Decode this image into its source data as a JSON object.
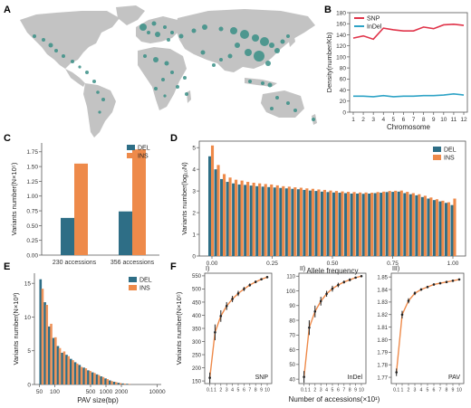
{
  "colors": {
    "teal": "#2e6e86",
    "orange": "#ee8a4a",
    "snp_red": "#e0344a",
    "indel_blue": "#2ea3c6",
    "map_land": "#c3c3c3",
    "map_dot": "#3a8f86",
    "err": "#222222"
  },
  "panel_labels": [
    "A",
    "B",
    "C",
    "D",
    "E",
    "F"
  ],
  "chart_data": [
    {
      "panel": "A",
      "type": "map",
      "title": "",
      "description_points": "sampling locations shown as dots on a world map"
    },
    {
      "panel": "B",
      "type": "line",
      "x": [
        1,
        2,
        3,
        4,
        5,
        6,
        7,
        8,
        9,
        10,
        11,
        12
      ],
      "xlabel": "Chromosome",
      "ylabel": "Density(number/Kb)",
      "ylim": [
        0,
        180
      ],
      "yticks": [
        0,
        20,
        40,
        60,
        80,
        100,
        120,
        140,
        160,
        180
      ],
      "series": [
        {
          "name": "SNP",
          "values": [
            134,
            138,
            132,
            152,
            149,
            147,
            147,
            154,
            151,
            158,
            159,
            157
          ],
          "color": "#e0344a"
        },
        {
          "name": "InDel",
          "values": [
            29,
            29,
            28,
            30,
            28,
            29,
            29,
            30,
            30,
            31,
            33,
            31
          ],
          "color": "#2ea3c6"
        }
      ],
      "legend": "top-left"
    },
    {
      "panel": "C",
      "type": "bar",
      "categories": [
        "230 accessions",
        "356 accessions"
      ],
      "ylabel": "Variants number(N×10⁵)",
      "ylim": [
        0,
        1.9
      ],
      "yticks": [
        "0.00",
        "0.25",
        "0.50",
        "0.75",
        "1.00",
        "1.25",
        "1.50",
        "1.75"
      ],
      "series": [
        {
          "name": "DEL",
          "values": [
            0.63,
            0.74
          ]
        },
        {
          "name": "INS",
          "values": [
            1.55,
            1.79
          ]
        }
      ],
      "legend": "top-right"
    },
    {
      "panel": "D",
      "type": "bar",
      "xlabel": "Allele frequency",
      "ylabel": "Variants number(log₁₀N)",
      "xticks": [
        "0.00",
        "0.25",
        "0.50",
        "0.75",
        "1.00"
      ],
      "yticks": [
        "0",
        "1",
        "2",
        "3",
        "4",
        "5"
      ],
      "ylim": [
        0,
        5.3
      ],
      "series": [
        {
          "name": "DEL",
          "values": [
            4.6,
            4.0,
            3.55,
            3.42,
            3.35,
            3.3,
            3.28,
            3.25,
            3.22,
            3.2,
            3.18,
            3.16,
            3.14,
            3.12,
            3.1,
            3.08,
            3.05,
            3.02,
            3.0,
            2.97,
            2.95,
            2.93,
            2.92,
            2.9,
            2.88,
            2.88,
            2.87,
            2.88,
            2.9,
            2.92,
            2.95,
            2.96,
            2.97,
            2.9,
            2.85,
            2.8,
            2.72,
            2.65,
            2.58,
            2.52,
            2.45,
            2.35
          ]
        },
        {
          "name": "INS",
          "values": [
            5.1,
            4.2,
            3.78,
            3.62,
            3.52,
            3.48,
            3.42,
            3.38,
            3.35,
            3.32,
            3.3,
            3.26,
            3.22,
            3.2,
            3.17,
            3.15,
            3.12,
            3.1,
            3.07,
            3.05,
            3.02,
            3.0,
            2.98,
            2.96,
            2.95,
            2.93,
            2.93,
            2.92,
            2.95,
            2.97,
            3.0,
            3.01,
            3.02,
            2.96,
            2.9,
            2.85,
            2.78,
            2.7,
            2.62,
            2.55,
            2.48,
            2.65
          ]
        }
      ],
      "legend": "top-right"
    },
    {
      "panel": "E",
      "type": "bar",
      "xlabel": "PAV size(bp)",
      "ylabel": "Variants number(N×10³)",
      "xticks": [
        "50",
        "100",
        "500",
        "1000",
        "2000",
        "10000"
      ],
      "xscale": "log",
      "yticks": [
        "0",
        "5",
        "10",
        "15"
      ],
      "ylim": [
        0,
        16.5
      ],
      "series": [
        {
          "name": "DEL",
          "values": [
            15.6,
            12.2,
            8.6,
            6.9,
            5.7,
            4.7,
            4.4,
            3.8,
            3.3,
            2.9,
            2.5,
            2.1,
            1.8,
            1.5,
            1.2,
            0.9,
            0.6,
            0.4,
            0.25,
            0.15,
            0.1
          ]
        },
        {
          "name": "INS",
          "values": [
            14.2,
            11.8,
            9.0,
            7.0,
            5.4,
            4.9,
            4.2,
            3.6,
            3.1,
            2.6,
            2.4,
            2.0,
            1.7,
            1.4,
            1.1,
            0.8,
            0.5,
            0.35,
            0.2,
            0.12,
            0.08
          ]
        }
      ],
      "legend": "top-right"
    },
    {
      "panel": "F",
      "type": "line",
      "xlabel": "Number of accessions(×10¹)",
      "ylabel": "Variants number(N×10⁵)",
      "xticks": [
        "0.1",
        "1",
        "2",
        "3",
        "4",
        "5",
        "6",
        "7",
        "8",
        "9",
        "10"
      ],
      "subplots": [
        {
          "label": "I)",
          "name": "SNP",
          "ylim": [
            140,
            560
          ],
          "yticks": [
            150,
            200,
            250,
            300,
            350,
            400,
            450,
            500,
            550
          ],
          "x": [
            0.1,
            1,
            2,
            3,
            4,
            5,
            6,
            7,
            8,
            9,
            10
          ],
          "values": [
            162,
            335,
            397,
            435,
            462,
            483,
            500,
            515,
            527,
            537,
            545
          ],
          "err": [
            20,
            30,
            22,
            15,
            12,
            10,
            8,
            6,
            5,
            4,
            2
          ]
        },
        {
          "label": "II)",
          "name": "InDel",
          "ylim": [
            37,
            112
          ],
          "yticks": [
            40,
            50,
            60,
            70,
            80,
            90,
            100,
            110
          ],
          "x": [
            0.1,
            1,
            2,
            3,
            4,
            5,
            6,
            7,
            8,
            9,
            10
          ],
          "values": [
            41.5,
            75,
            86,
            93,
            98,
            101.5,
            104,
            106,
            107.5,
            109,
            110
          ],
          "err": [
            4,
            5,
            4,
            3,
            2,
            2,
            1.5,
            1,
            1,
            0.5,
            0.3
          ]
        },
        {
          "label": "III)",
          "name": "PAV",
          "ylim": [
            1.765,
            1.853
          ],
          "yticks": [
            1.77,
            1.78,
            1.79,
            1.8,
            1.81,
            1.82,
            1.83,
            1.84,
            1.85
          ],
          "x": [
            0.1,
            1,
            2,
            3,
            4,
            5,
            6,
            7,
            8,
            9,
            10
          ],
          "values": [
            1.774,
            1.82,
            1.831,
            1.837,
            1.84,
            1.842,
            1.844,
            1.845,
            1.846,
            1.847,
            1.848
          ],
          "err": [
            0.003,
            0.003,
            0.002,
            0.0015,
            0.001,
            0.001,
            0.0008,
            0.0006,
            0.0005,
            0.0004,
            0.0003
          ]
        }
      ]
    }
  ]
}
